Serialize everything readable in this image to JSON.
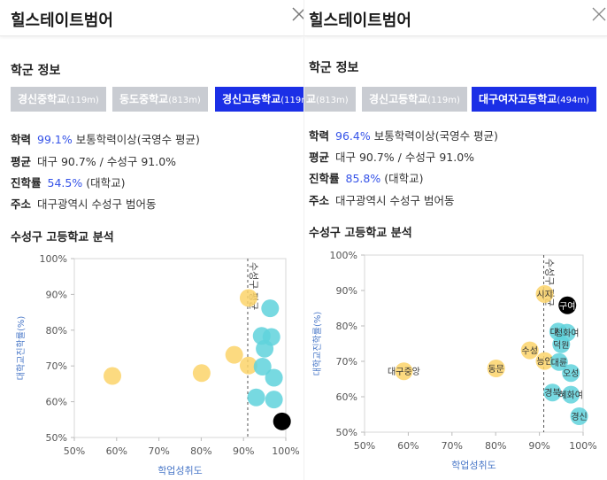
{
  "panels": [
    {
      "title": "힐스테이트범어",
      "section_title": "학군 정보",
      "tabs": [
        {
          "name": "경신중학교",
          "dist": "(119m)",
          "active": false
        },
        {
          "name": "동도중학교",
          "dist": "(813m)",
          "active": false
        },
        {
          "name": "경신고등학교",
          "dist": "(119m)",
          "active": true
        }
      ],
      "info": {
        "academic": {
          "label": "학력",
          "value": "99.1%",
          "desc": "보통학력이상(국영수 평균)"
        },
        "average": {
          "label": "평균",
          "desc": "대구 90.7% / 수성구 91.0%"
        },
        "advancement": {
          "label": "진학률",
          "value": "54.5%",
          "desc": "(대학교)"
        },
        "address": {
          "label": "주소",
          "desc": "대구광역시 수성구 범어동"
        }
      },
      "analysis_title": "수성구 고등학교 분석"
    },
    {
      "title": "힐스테이트범어",
      "section_title": "학군 정보",
      "tabs": [
        {
          "name": "교",
          "dist": "(813m)",
          "active": false
        },
        {
          "name": "경신고등학교",
          "dist": "(119m)",
          "active": false
        },
        {
          "name": "대구여자고등학교",
          "dist": "(494m)",
          "active": true
        }
      ],
      "info": {
        "academic": {
          "label": "학력",
          "value": "96.4%",
          "desc": "보통학력이상(국영수 평균)"
        },
        "average": {
          "label": "평균",
          "desc": "대구 90.7% / 수성구 91.0%"
        },
        "advancement": {
          "label": "진학률",
          "value": "85.8%",
          "desc": "(대학교)"
        },
        "address": {
          "label": "주소",
          "desc": "대구광역시 수성구 범어동"
        }
      },
      "analysis_title": "수성구 고등학교 분석"
    }
  ],
  "colors": {
    "accent": "#1b2fe6",
    "tab_inactive": "#c9ccd2",
    "highlight_value": "#3553e8",
    "dot_yellow": "#fbd46a",
    "dot_teal": "#5fd2dc",
    "dot_black": "#000000",
    "axis_label": "#4a78c8"
  },
  "chart_data": [
    {
      "type": "scatter",
      "xlabel": "학업성취도",
      "ylabel": "대학교진학률(%)",
      "xlim": [
        50,
        100
      ],
      "ylim": [
        50,
        100
      ],
      "x_ticks": [
        "50%",
        "60%",
        "70%",
        "80%",
        "90%",
        "100%"
      ],
      "y_ticks": [
        "50%",
        "60%",
        "70%",
        "80%",
        "90%",
        "100%"
      ],
      "reference_line": {
        "x": 91.0,
        "label": "수성구 평균"
      },
      "points": [
        {
          "x": 59.0,
          "y": 67.2,
          "color": "yellow",
          "label": ""
        },
        {
          "x": 80.1,
          "y": 68.0,
          "color": "yellow",
          "label": ""
        },
        {
          "x": 87.8,
          "y": 73.1,
          "color": "yellow",
          "label": ""
        },
        {
          "x": 91.2,
          "y": 89.0,
          "color": "yellow",
          "label": ""
        },
        {
          "x": 91.2,
          "y": 70.1,
          "color": "yellow",
          "label": ""
        },
        {
          "x": 93.0,
          "y": 61.2,
          "color": "teal",
          "label": ""
        },
        {
          "x": 94.3,
          "y": 78.4,
          "color": "teal",
          "label": ""
        },
        {
          "x": 94.5,
          "y": 69.8,
          "color": "teal",
          "label": ""
        },
        {
          "x": 95.0,
          "y": 74.8,
          "color": "teal",
          "label": ""
        },
        {
          "x": 96.3,
          "y": 86.1,
          "color": "teal",
          "label": ""
        },
        {
          "x": 96.6,
          "y": 78.1,
          "color": "teal",
          "label": ""
        },
        {
          "x": 97.2,
          "y": 66.7,
          "color": "teal",
          "label": ""
        },
        {
          "x": 97.2,
          "y": 60.6,
          "color": "teal",
          "label": ""
        },
        {
          "x": 99.1,
          "y": 54.5,
          "color": "black",
          "label": ""
        }
      ]
    },
    {
      "type": "scatter",
      "xlabel": "학업성취도",
      "ylabel": "대학교진학률(%)",
      "xlim": [
        50,
        100
      ],
      "ylim": [
        50,
        100
      ],
      "x_ticks": [
        "50%",
        "60%",
        "70%",
        "80%",
        "90%",
        "100%"
      ],
      "y_ticks": [
        "50%",
        "60%",
        "70%",
        "80%",
        "90%",
        "100%"
      ],
      "reference_line": {
        "x": 91.0,
        "label": "수성구 평균"
      },
      "points": [
        {
          "x": 59.0,
          "y": 67.2,
          "color": "yellow",
          "label": "대구중앙"
        },
        {
          "x": 80.1,
          "y": 68.0,
          "color": "yellow",
          "label": "동문"
        },
        {
          "x": 87.8,
          "y": 73.1,
          "color": "yellow",
          "label": "수성"
        },
        {
          "x": 91.2,
          "y": 89.0,
          "color": "yellow",
          "label": "시지"
        },
        {
          "x": 91.2,
          "y": 70.1,
          "color": "yellow",
          "label": "능인"
        },
        {
          "x": 93.0,
          "y": 61.2,
          "color": "teal",
          "label": "경북"
        },
        {
          "x": 94.3,
          "y": 78.4,
          "color": "teal",
          "label": "대구"
        },
        {
          "x": 94.5,
          "y": 69.8,
          "color": "teal",
          "label": "대륜"
        },
        {
          "x": 95.0,
          "y": 74.8,
          "color": "teal",
          "label": "덕원"
        },
        {
          "x": 96.3,
          "y": 78.1,
          "color": "teal",
          "label": "정화여"
        },
        {
          "x": 96.4,
          "y": 85.8,
          "color": "black",
          "label": "구여"
        },
        {
          "x": 97.2,
          "y": 66.7,
          "color": "teal",
          "label": "오성"
        },
        {
          "x": 97.2,
          "y": 60.6,
          "color": "teal",
          "label": "혜화여"
        },
        {
          "x": 99.1,
          "y": 54.5,
          "color": "teal",
          "label": "경신"
        }
      ]
    }
  ]
}
